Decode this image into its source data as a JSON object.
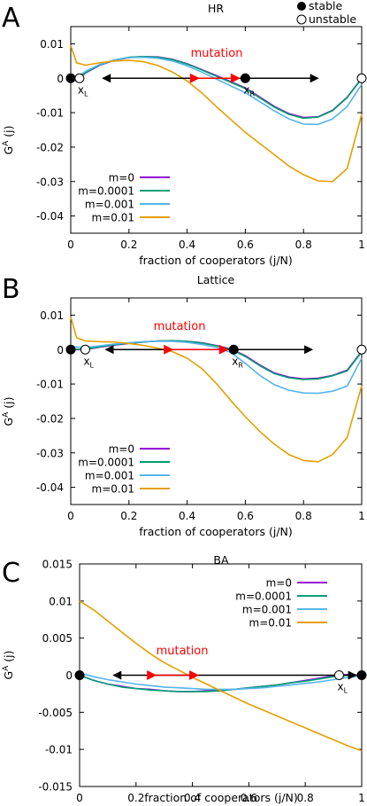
{
  "legend_top": {
    "stable": "stable",
    "unstable": "unstable"
  },
  "colors": {
    "m0": "#9400d3",
    "m0001": "#009e73",
    "m001": "#56b4e9",
    "m01": "#e69f00",
    "mutation": "#ff0000",
    "axis": "#000000"
  },
  "chart_data": [
    {
      "type": "line",
      "panel_letter": "A",
      "title": "HR",
      "xlabel": "fraction of cooperators (j/N)",
      "ylabel": "G^A (j)",
      "xlim": [
        0,
        1
      ],
      "ylim": [
        -0.045,
        0.015
      ],
      "xticks": [
        0,
        0.2,
        0.4,
        0.6,
        0.8,
        1
      ],
      "xtick_labels": [
        "0",
        "0.2",
        "0.4",
        "0.6",
        "0.8",
        "1"
      ],
      "yticks": [
        0.01,
        0,
        -0.01,
        -0.02,
        -0.03,
        -0.04
      ],
      "ytick_labels": [
        "0.01",
        "0",
        "-0.01",
        "-0.02",
        "-0.03",
        "-0.04"
      ],
      "legend_position": "bottom-left",
      "annotation": "mutation",
      "fixed_points": [
        {
          "x": 0,
          "type": "stable",
          "label": ""
        },
        {
          "x": 0.03,
          "type": "unstable",
          "label": "xL"
        },
        {
          "x": 0.6,
          "type": "stable",
          "label": "xR"
        },
        {
          "x": 1,
          "type": "unstable",
          "label": ""
        }
      ],
      "arrows_black": [
        [
          0.6,
          0.11
        ],
        [
          0.6,
          0.85
        ]
      ],
      "arrow_red": [
        0.44,
        0.58
      ],
      "series": [
        {
          "name": "m=0",
          "color": "#9400d3",
          "x": [
            0,
            0.02,
            0.05,
            0.1,
            0.15,
            0.2,
            0.25,
            0.3,
            0.35,
            0.4,
            0.45,
            0.5,
            0.55,
            0.6,
            0.65,
            0.7,
            0.75,
            0.8,
            0.85,
            0.9,
            0.95,
            1
          ],
          "y": [
            0,
            -0.0008,
            0.0015,
            0.0038,
            0.0052,
            0.006,
            0.0063,
            0.0062,
            0.0055,
            0.0042,
            0.0025,
            0.0008,
            -0.001,
            -0.0028,
            -0.0055,
            -0.0082,
            -0.0103,
            -0.0114,
            -0.0112,
            -0.0093,
            -0.0055,
            0
          ]
        },
        {
          "name": "m=0.0001",
          "color": "#009e73",
          "x": [
            0,
            0.02,
            0.05,
            0.1,
            0.15,
            0.2,
            0.25,
            0.3,
            0.35,
            0.4,
            0.45,
            0.5,
            0.55,
            0.6,
            0.65,
            0.7,
            0.75,
            0.8,
            0.85,
            0.9,
            0.95,
            1
          ],
          "y": [
            0,
            -0.0006,
            0.0016,
            0.0039,
            0.0053,
            0.0061,
            0.0063,
            0.0061,
            0.0054,
            0.0041,
            0.0024,
            0.0006,
            -0.0012,
            -0.003,
            -0.0057,
            -0.0084,
            -0.0105,
            -0.0116,
            -0.0113,
            -0.0094,
            -0.0056,
            -0.0001
          ]
        },
        {
          "name": "m=0.001",
          "color": "#56b4e9",
          "x": [
            0,
            0.02,
            0.05,
            0.1,
            0.15,
            0.2,
            0.25,
            0.3,
            0.35,
            0.4,
            0.45,
            0.5,
            0.55,
            0.6,
            0.65,
            0.7,
            0.75,
            0.8,
            0.85,
            0.9,
            0.95,
            1
          ],
          "y": [
            0.0008,
            0.0002,
            0.002,
            0.004,
            0.0053,
            0.006,
            0.0061,
            0.0058,
            0.005,
            0.0036,
            0.0018,
            -0.0002,
            -0.0022,
            -0.0042,
            -0.0068,
            -0.0095,
            -0.0118,
            -0.0133,
            -0.0134,
            -0.0118,
            -0.0082,
            -0.0018
          ]
        },
        {
          "name": "m=0.01",
          "color": "#e69f00",
          "x": [
            0,
            0.02,
            0.05,
            0.1,
            0.15,
            0.2,
            0.25,
            0.3,
            0.35,
            0.4,
            0.45,
            0.5,
            0.55,
            0.6,
            0.65,
            0.7,
            0.75,
            0.8,
            0.85,
            0.9,
            0.95,
            1
          ],
          "y": [
            0.0095,
            0.0045,
            0.0038,
            0.0045,
            0.005,
            0.0052,
            0.0048,
            0.0037,
            0.0018,
            -0.0008,
            -0.0042,
            -0.0082,
            -0.012,
            -0.0157,
            -0.019,
            -0.0222,
            -0.0255,
            -0.028,
            -0.0298,
            -0.03,
            -0.0262,
            -0.0105
          ]
        }
      ]
    },
    {
      "type": "line",
      "panel_letter": "B",
      "title": "Lattice",
      "xlabel": "fraction of cooperators (j/N)",
      "ylabel": "G^A (j)",
      "xlim": [
        0,
        1
      ],
      "ylim": [
        -0.045,
        0.015
      ],
      "xticks": [
        0,
        0.2,
        0.4,
        0.6,
        0.8,
        1
      ],
      "xtick_labels": [
        "0",
        "0.2",
        "0.4",
        "0.6",
        "0.8",
        "1"
      ],
      "yticks": [
        0.01,
        0,
        -0.01,
        -0.02,
        -0.03,
        -0.04
      ],
      "ytick_labels": [
        "0.01",
        "0",
        "-0.01",
        "-0.02",
        "-0.03",
        "-0.04"
      ],
      "legend_position": "bottom-left",
      "annotation": "mutation",
      "fixed_points": [
        {
          "x": 0,
          "type": "stable",
          "label": ""
        },
        {
          "x": 0.05,
          "type": "unstable",
          "label": "xL"
        },
        {
          "x": 0.56,
          "type": "stable",
          "label": "xR"
        },
        {
          "x": 1,
          "type": "unstable",
          "label": ""
        }
      ],
      "arrows_black": [
        [
          0.56,
          0.12
        ],
        [
          0.56,
          0.83
        ]
      ],
      "arrow_red": [
        0.35,
        0.54
      ],
      "series": [
        {
          "name": "m=0",
          "color": "#9400d3",
          "x": [
            0,
            0.05,
            0.1,
            0.15,
            0.2,
            0.25,
            0.3,
            0.35,
            0.4,
            0.45,
            0.5,
            0.55,
            0.6,
            0.65,
            0.7,
            0.75,
            0.8,
            0.85,
            0.9,
            0.95,
            1
          ],
          "y": [
            0,
            0,
            0.0007,
            0.0013,
            0.0018,
            0.0022,
            0.0025,
            0.0026,
            0.0024,
            0.002,
            0.0012,
            0.0002,
            -0.0018,
            -0.0045,
            -0.0068,
            -0.008,
            -0.0085,
            -0.0083,
            -0.0075,
            -0.006,
            -0.0005
          ]
        },
        {
          "name": "m=0.0001",
          "color": "#009e73",
          "x": [
            0,
            0.05,
            0.1,
            0.15,
            0.2,
            0.25,
            0.3,
            0.35,
            0.4,
            0.45,
            0.5,
            0.55,
            0.6,
            0.65,
            0.7,
            0.75,
            0.8,
            0.85,
            0.9,
            0.95,
            1
          ],
          "y": [
            0.0001,
            0.0001,
            0.0008,
            0.0014,
            0.0019,
            0.0022,
            0.0025,
            0.0026,
            0.0024,
            0.0019,
            0.0011,
            0.0001,
            -0.002,
            -0.0047,
            -0.007,
            -0.0082,
            -0.0087,
            -0.0085,
            -0.0076,
            -0.0062,
            -0.0007
          ]
        },
        {
          "name": "m=0.001",
          "color": "#56b4e9",
          "x": [
            0,
            0.05,
            0.1,
            0.15,
            0.2,
            0.25,
            0.3,
            0.35,
            0.4,
            0.45,
            0.5,
            0.55,
            0.6,
            0.65,
            0.7,
            0.75,
            0.8,
            0.85,
            0.9,
            0.95,
            1
          ],
          "y": [
            0.0008,
            0.0006,
            0.0011,
            0.0016,
            0.002,
            0.0023,
            0.0024,
            0.0024,
            0.0021,
            0.0015,
            0.0006,
            -0.0008,
            -0.004,
            -0.0075,
            -0.0102,
            -0.0118,
            -0.0126,
            -0.0127,
            -0.0121,
            -0.0106,
            -0.0025
          ]
        },
        {
          "name": "m=0.01",
          "color": "#e69f00",
          "x": [
            0,
            0.02,
            0.05,
            0.1,
            0.15,
            0.2,
            0.25,
            0.3,
            0.35,
            0.4,
            0.45,
            0.5,
            0.55,
            0.6,
            0.65,
            0.7,
            0.75,
            0.8,
            0.85,
            0.9,
            0.95,
            1
          ],
          "y": [
            0.0095,
            0.0035,
            0.0025,
            0.0023,
            0.0022,
            0.0018,
            0.0012,
            0.0004,
            -0.0006,
            -0.0025,
            -0.0055,
            -0.0098,
            -0.0148,
            -0.0195,
            -0.0238,
            -0.0275,
            -0.0305,
            -0.0322,
            -0.0326,
            -0.0305,
            -0.0255,
            -0.0105
          ]
        }
      ]
    },
    {
      "type": "line",
      "panel_letter": "C",
      "title": "BA",
      "xlabel": "fraction of cooperators (j/N)",
      "ylabel": "G^A (j)",
      "xlim": [
        0,
        1
      ],
      "ylim": [
        -0.015,
        0.015
      ],
      "xticks": [
        0,
        0.2,
        0.4,
        0.6,
        0.8,
        1
      ],
      "xtick_labels": [
        "0",
        "0.2",
        "0.4",
        "0.6",
        "0.8",
        "1"
      ],
      "yticks": [
        0.015,
        0.01,
        0.005,
        0,
        -0.005,
        -0.01,
        -0.015
      ],
      "ytick_labels": [
        "0.015",
        "0.01",
        "0.005",
        "0",
        "-0.005",
        "-0.01",
        "-0.015"
      ],
      "legend_position": "top-right",
      "annotation": "mutation",
      "fixed_points": [
        {
          "x": 0,
          "type": "stable",
          "label": ""
        },
        {
          "x": 0.92,
          "type": "unstable",
          "label": "xL"
        },
        {
          "x": 1,
          "type": "stable",
          "label": ""
        }
      ],
      "arrows_black": [
        [
          0.92,
          0.12
        ],
        [
          0.92,
          0.98
        ]
      ],
      "arrow_red": [
        0.27,
        0.42
      ],
      "series": [
        {
          "name": "m=0",
          "color": "#9400d3",
          "x": [
            0,
            0.05,
            0.1,
            0.15,
            0.2,
            0.25,
            0.3,
            0.35,
            0.4,
            0.45,
            0.5,
            0.55,
            0.6,
            0.65,
            0.7,
            0.75,
            0.8,
            0.85,
            0.9,
            0.95,
            1
          ],
          "y": [
            0,
            -0.0007,
            -0.0012,
            -0.0015,
            -0.0018,
            -0.0019,
            -0.0021,
            -0.0022,
            -0.0022,
            -0.0021,
            -0.002,
            -0.0019,
            -0.0017,
            -0.0015,
            -0.0013,
            -0.001,
            -0.0007,
            -0.0004,
            -0.0001,
            0.0001,
            0
          ]
        },
        {
          "name": "m=0.0001",
          "color": "#009e73",
          "x": [
            0,
            0.05,
            0.1,
            0.15,
            0.2,
            0.25,
            0.3,
            0.35,
            0.4,
            0.45,
            0.5,
            0.55,
            0.6,
            0.65,
            0.7,
            0.75,
            0.8,
            0.85,
            0.9,
            0.95,
            1
          ],
          "y": [
            0,
            -0.0007,
            -0.0012,
            -0.0016,
            -0.0018,
            -0.002,
            -0.0021,
            -0.0022,
            -0.0022,
            -0.0022,
            -0.0021,
            -0.0019,
            -0.0017,
            -0.0015,
            -0.0013,
            -0.001,
            -0.0008,
            -0.0005,
            -0.0002,
            0,
            0
          ]
        },
        {
          "name": "m=0.001",
          "color": "#56b4e9",
          "x": [
            0,
            0.05,
            0.1,
            0.15,
            0.2,
            0.25,
            0.3,
            0.35,
            0.4,
            0.45,
            0.5,
            0.55,
            0.6,
            0.65,
            0.7,
            0.75,
            0.8,
            0.85,
            0.9,
            0.95,
            1
          ],
          "y": [
            0.0003,
            -0.0002,
            -0.0006,
            -0.0009,
            -0.0012,
            -0.0014,
            -0.0016,
            -0.0017,
            -0.0018,
            -0.0019,
            -0.0019,
            -0.0019,
            -0.0018,
            -0.0017,
            -0.0015,
            -0.0013,
            -0.0011,
            -0.0009,
            -0.0006,
            -0.0003,
            -0.0001
          ]
        },
        {
          "name": "m=0.01",
          "color": "#e69f00",
          "x": [
            0,
            0.05,
            0.1,
            0.15,
            0.2,
            0.25,
            0.3,
            0.35,
            0.4,
            0.45,
            0.5,
            0.55,
            0.6,
            0.65,
            0.7,
            0.75,
            0.8,
            0.85,
            0.9,
            0.95,
            1
          ],
          "y": [
            0.01,
            0.0088,
            0.0073,
            0.0058,
            0.0043,
            0.0029,
            0.0017,
            0.0007,
            -0.0003,
            -0.0012,
            -0.0021,
            -0.003,
            -0.0039,
            -0.0047,
            -0.0055,
            -0.0063,
            -0.0071,
            -0.0079,
            -0.0087,
            -0.0095,
            -0.0102
          ]
        }
      ]
    }
  ]
}
